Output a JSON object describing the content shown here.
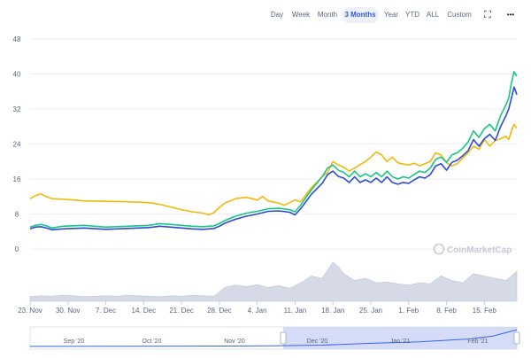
{
  "toolbar": {
    "ranges": [
      {
        "label": "Day",
        "active": false
      },
      {
        "label": "Week",
        "active": false
      },
      {
        "label": "Month",
        "active": false
      },
      {
        "label": "3 Months",
        "active": true
      },
      {
        "label": "Year",
        "active": false
      },
      {
        "label": "YTD",
        "active": false
      },
      {
        "label": "ALL",
        "active": false
      },
      {
        "label": "Custom",
        "active": false
      }
    ],
    "fullscreen_icon": "expand-icon",
    "more_icon": "more-dots-icon",
    "fullscreen_glyph": "⛶",
    "more_glyph": "•••"
  },
  "watermark": {
    "text": "CoinMarketCap",
    "icon": "coinmarketcap-logo"
  },
  "chart_data": {
    "type": "line",
    "ylim": [
      0,
      48
    ],
    "yticks": [
      0,
      8,
      16,
      24,
      32,
      40,
      48
    ],
    "xlim": [
      0,
      90
    ],
    "x_ticks": [
      {
        "label": "23. Nov",
        "x": 0
      },
      {
        "label": "30. Nov",
        "x": 7
      },
      {
        "label": "7. Dec",
        "x": 14
      },
      {
        "label": "14. Dec",
        "x": 21
      },
      {
        "label": "21. Dec",
        "x": 28
      },
      {
        "label": "28. Dec",
        "x": 35
      },
      {
        "label": "4. Jan",
        "x": 42
      },
      {
        "label": "11. Jan",
        "x": 49
      },
      {
        "label": "18. Jan",
        "x": 56
      },
      {
        "label": "25. Jan",
        "x": 63
      },
      {
        "label": "1. Feb",
        "x": 70
      },
      {
        "label": "8. Feb",
        "x": 77
      },
      {
        "label": "15. Feb",
        "x": 84
      }
    ],
    "grid": true,
    "legend": "none",
    "series": [
      {
        "color": "#f0b90b",
        "points": [
          [
            0,
            11.5
          ],
          [
            1,
            12.2
          ],
          [
            2,
            12.6
          ],
          [
            3,
            12.0
          ],
          [
            4,
            11.5
          ],
          [
            7,
            11.3
          ],
          [
            10,
            11.0
          ],
          [
            14,
            10.9
          ],
          [
            18,
            10.8
          ],
          [
            22,
            10.6
          ],
          [
            24,
            10.2
          ],
          [
            26,
            9.6
          ],
          [
            28,
            9.0
          ],
          [
            30,
            8.5
          ],
          [
            32,
            8.2
          ],
          [
            33,
            7.8
          ],
          [
            34,
            8.3
          ],
          [
            35,
            9.5
          ],
          [
            36,
            10.5
          ],
          [
            38,
            11.5
          ],
          [
            40,
            11.8
          ],
          [
            42,
            11.2
          ],
          [
            43,
            12.0
          ],
          [
            44,
            11.0
          ],
          [
            46,
            10.5
          ],
          [
            47,
            10.0
          ],
          [
            48,
            10.6
          ],
          [
            49,
            11.2
          ],
          [
            50,
            10.8
          ],
          [
            52,
            14.0
          ],
          [
            54,
            16.5
          ],
          [
            55,
            17.5
          ],
          [
            56,
            20.0
          ],
          [
            57,
            19.2
          ],
          [
            58,
            18.7
          ],
          [
            59,
            17.8
          ],
          [
            60,
            18.5
          ],
          [
            61,
            19.3
          ],
          [
            62,
            20.0
          ],
          [
            63,
            21.0
          ],
          [
            64,
            22.2
          ],
          [
            65,
            21.5
          ],
          [
            66,
            20.0
          ],
          [
            67,
            21.0
          ],
          [
            68,
            19.7
          ],
          [
            69,
            19.4
          ],
          [
            70,
            19.2
          ],
          [
            71,
            19.6
          ],
          [
            72,
            19.0
          ],
          [
            73,
            19.5
          ],
          [
            74,
            20.0
          ],
          [
            75,
            22.0
          ],
          [
            76,
            21.5
          ],
          [
            77,
            19.7
          ],
          [
            78,
            19.0
          ],
          [
            79,
            19.5
          ],
          [
            80,
            20.8
          ],
          [
            81,
            22.0
          ],
          [
            82,
            23.5
          ],
          [
            83,
            22.8
          ],
          [
            84,
            25.0
          ],
          [
            85,
            23.5
          ],
          [
            86,
            24.8
          ],
          [
            87,
            25.2
          ],
          [
            88,
            25.8
          ],
          [
            88.5,
            25.0
          ],
          [
            89,
            27.0
          ],
          [
            89.5,
            28.5
          ],
          [
            90,
            27.6
          ]
        ]
      },
      {
        "color": "#16c784",
        "points": [
          [
            0,
            5.0
          ],
          [
            1,
            5.4
          ],
          [
            2,
            5.6
          ],
          [
            3,
            5.3
          ],
          [
            4,
            4.8
          ],
          [
            6,
            5.2
          ],
          [
            10,
            5.4
          ],
          [
            14,
            5.0
          ],
          [
            18,
            5.2
          ],
          [
            22,
            5.4
          ],
          [
            24,
            5.8
          ],
          [
            26,
            5.6
          ],
          [
            28,
            5.4
          ],
          [
            30,
            5.2
          ],
          [
            32,
            5.1
          ],
          [
            34,
            5.3
          ],
          [
            35,
            5.8
          ],
          [
            36,
            6.5
          ],
          [
            38,
            7.5
          ],
          [
            40,
            8.2
          ],
          [
            42,
            8.6
          ],
          [
            44,
            9.2
          ],
          [
            46,
            9.3
          ],
          [
            48,
            9.0
          ],
          [
            49,
            8.5
          ],
          [
            50,
            10.0
          ],
          [
            52,
            13.5
          ],
          [
            54,
            16.5
          ],
          [
            55,
            18.5
          ],
          [
            56,
            19.2
          ],
          [
            57,
            18.0
          ],
          [
            58,
            17.5
          ],
          [
            59,
            16.5
          ],
          [
            60,
            17.8
          ],
          [
            61,
            16.5
          ],
          [
            62,
            17.2
          ],
          [
            63,
            16.5
          ],
          [
            64,
            17.5
          ],
          [
            65,
            16.5
          ],
          [
            66,
            17.8
          ],
          [
            67,
            16.5
          ],
          [
            68,
            16.0
          ],
          [
            69,
            16.5
          ],
          [
            70,
            16.2
          ],
          [
            71,
            17.0
          ],
          [
            72,
            17.8
          ],
          [
            73,
            17.5
          ],
          [
            74,
            18.5
          ],
          [
            75,
            20.5
          ],
          [
            76,
            21.0
          ],
          [
            77,
            19.8
          ],
          [
            78,
            21.5
          ],
          [
            79,
            22.0
          ],
          [
            80,
            23.0
          ],
          [
            81,
            24.5
          ],
          [
            82,
            27.0
          ],
          [
            83,
            25.5
          ],
          [
            84,
            27.5
          ],
          [
            85,
            28.5
          ],
          [
            86,
            27.0
          ],
          [
            87,
            30.5
          ],
          [
            88,
            33.0
          ],
          [
            88.5,
            34.5
          ],
          [
            89,
            38.0
          ],
          [
            89.5,
            40.5
          ],
          [
            90,
            39.5
          ]
        ]
      },
      {
        "color": "#2f49d1",
        "points": [
          [
            0,
            4.6
          ],
          [
            1,
            5.0
          ],
          [
            2,
            5.1
          ],
          [
            3,
            4.8
          ],
          [
            4,
            4.4
          ],
          [
            6,
            4.6
          ],
          [
            10,
            4.8
          ],
          [
            14,
            4.5
          ],
          [
            18,
            4.7
          ],
          [
            22,
            4.9
          ],
          [
            24,
            5.2
          ],
          [
            26,
            5.0
          ],
          [
            28,
            4.8
          ],
          [
            30,
            4.6
          ],
          [
            32,
            4.5
          ],
          [
            34,
            4.7
          ],
          [
            35,
            5.2
          ],
          [
            36,
            5.9
          ],
          [
            38,
            6.8
          ],
          [
            40,
            7.5
          ],
          [
            42,
            8.0
          ],
          [
            44,
            8.6
          ],
          [
            46,
            8.7
          ],
          [
            48,
            8.4
          ],
          [
            49,
            7.8
          ],
          [
            50,
            9.2
          ],
          [
            52,
            12.5
          ],
          [
            54,
            15.0
          ],
          [
            55,
            17.0
          ],
          [
            56,
            17.8
          ],
          [
            57,
            16.6
          ],
          [
            58,
            16.2
          ],
          [
            59,
            15.2
          ],
          [
            60,
            16.5
          ],
          [
            61,
            15.2
          ],
          [
            62,
            15.8
          ],
          [
            63,
            15.2
          ],
          [
            64,
            16.2
          ],
          [
            65,
            15.2
          ],
          [
            66,
            16.5
          ],
          [
            67,
            15.2
          ],
          [
            68,
            14.8
          ],
          [
            69,
            15.2
          ],
          [
            70,
            15.0
          ],
          [
            71,
            15.8
          ],
          [
            72,
            16.5
          ],
          [
            73,
            16.2
          ],
          [
            74,
            17.0
          ],
          [
            75,
            19.0
          ],
          [
            76,
            19.5
          ],
          [
            77,
            18.0
          ],
          [
            78,
            19.8
          ],
          [
            79,
            20.3
          ],
          [
            80,
            21.3
          ],
          [
            81,
            22.5
          ],
          [
            82,
            25.0
          ],
          [
            83,
            23.5
          ],
          [
            84,
            25.2
          ],
          [
            85,
            26.2
          ],
          [
            86,
            24.8
          ],
          [
            87,
            28.0
          ],
          [
            88,
            30.5
          ],
          [
            88.5,
            32.0
          ],
          [
            89,
            34.5
          ],
          [
            89.5,
            37.0
          ],
          [
            90,
            35.3
          ]
        ]
      }
    ],
    "volume": {
      "x": [
        0,
        2,
        4,
        6,
        8,
        10,
        12,
        14,
        16,
        18,
        20,
        22,
        24,
        26,
        28,
        30,
        32,
        34,
        36,
        38,
        40,
        42,
        44,
        46,
        48,
        50,
        52,
        54,
        56,
        57,
        58,
        60,
        62,
        64,
        66,
        68,
        70,
        72,
        74,
        76,
        78,
        80,
        82,
        84,
        86,
        88,
        90
      ],
      "values": [
        0.1,
        0.12,
        0.11,
        0.13,
        0.12,
        0.1,
        0.11,
        0.12,
        0.11,
        0.13,
        0.12,
        0.11,
        0.1,
        0.12,
        0.11,
        0.13,
        0.12,
        0.11,
        0.3,
        0.35,
        0.32,
        0.36,
        0.3,
        0.34,
        0.28,
        0.4,
        0.55,
        0.5,
        0.85,
        0.75,
        0.6,
        0.45,
        0.5,
        0.4,
        0.42,
        0.38,
        0.35,
        0.4,
        0.38,
        0.55,
        0.45,
        0.4,
        0.6,
        0.55,
        0.5,
        0.45,
        0.65
      ]
    },
    "navigator": {
      "labels": [
        {
          "label": "Sep '20",
          "pos": 0.09
        },
        {
          "label": "Oct '20",
          "pos": 0.25
        },
        {
          "label": "Nov '20",
          "pos": 0.42
        },
        {
          "label": "Dec '20",
          "pos": 0.59
        },
        {
          "label": "Jan '21",
          "pos": 0.76
        },
        {
          "label": "Feb '21",
          "pos": 0.92
        }
      ],
      "selection": [
        0.52,
        1.0
      ],
      "line": [
        [
          0.0,
          0.05
        ],
        [
          0.2,
          0.06
        ],
        [
          0.4,
          0.07
        ],
        [
          0.5,
          0.08
        ],
        [
          0.6,
          0.12
        ],
        [
          0.7,
          0.22
        ],
        [
          0.8,
          0.3
        ],
        [
          0.9,
          0.45
        ],
        [
          0.95,
          0.6
        ],
        [
          1.0,
          0.95
        ]
      ]
    }
  }
}
